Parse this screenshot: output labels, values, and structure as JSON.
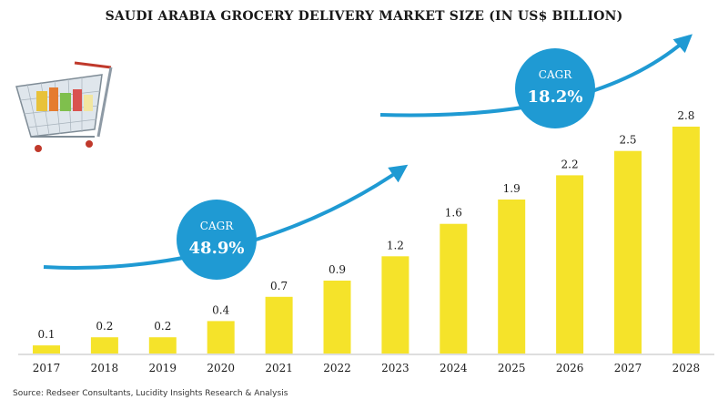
{
  "chart_data": {
    "type": "bar",
    "title": "SAUDI ARABIA GROCERY DELIVERY MARKET SIZE (IN US$ BILLION)",
    "categories": [
      "2017",
      "2018",
      "2019",
      "2020",
      "2021",
      "2022",
      "2023",
      "2024",
      "2025",
      "2026",
      "2027",
      "2028"
    ],
    "values": [
      0.1,
      0.2,
      0.2,
      0.4,
      0.7,
      0.9,
      1.2,
      1.6,
      1.9,
      2.2,
      2.5,
      2.8
    ],
    "value_labels": [
      "0.1",
      "0.2",
      "0.2",
      "0.4",
      "0.7",
      "0.9",
      "1.2",
      "1.6",
      "1.9",
      "2.2",
      "2.5",
      "2.8"
    ],
    "xlabel": "",
    "ylabel": "",
    "ylim": [
      0,
      2.8
    ],
    "grid": false,
    "legend": "none",
    "annotations": [
      {
        "label": "CAGR",
        "value": "48.9%",
        "period_from": "2017",
        "period_to": "2023"
      },
      {
        "label": "CAGR",
        "value": "18.2%",
        "period_from": "2023",
        "period_to": "2028"
      }
    ]
  },
  "source": "Source: Redseer Consultants, Lucidity Insights Research & Analysis",
  "colors": {
    "bar": "#f5e32a",
    "arrow": "#1f9ad3",
    "badge": "#1f9ad3",
    "text": "#1a1a1a"
  },
  "icons": [
    "shopping-cart-icon"
  ]
}
